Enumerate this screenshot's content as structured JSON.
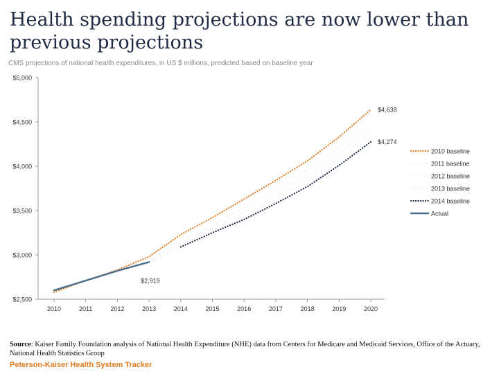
{
  "title": "Health spending projections are now lower than previous projections",
  "subtitle": "CMS projections of national health expenditures, in US $ millions, predicted based on baseline year",
  "source_label": "Source",
  "source_text": ": Kaiser Family Foundation analysis of National Health Expenditure (NHE) data from Centers for Medicare and Medicaid Services, Office of the Actuary, National Health Statistics Group",
  "brand": "Peterson-Kaiser Health System Tracker",
  "chart_data": {
    "type": "line",
    "title": "Health spending projections are now lower than previous projections",
    "subtitle": "CMS projections of national health expenditures, in US $ millions, predicted based on baseline year",
    "xlabel": "",
    "ylabel": "",
    "categories": [
      "2010",
      "2011",
      "2012",
      "2013",
      "2014",
      "2015",
      "2016",
      "2017",
      "2018",
      "2019",
      "2020"
    ],
    "ylim": [
      2500,
      5000
    ],
    "yticks": [
      2500,
      3000,
      3500,
      4000,
      4500,
      5000
    ],
    "ytick_labels": [
      "$2,500",
      "$3,000",
      "$3,500",
      "$4,000",
      "$4,500",
      "$5,000"
    ],
    "grid": false,
    "legend_position": "right",
    "series": [
      {
        "name": "2010 baseline",
        "color": "#e07b1f",
        "style": "dotted",
        "x": [
          2010,
          2011,
          2012,
          2013,
          2014,
          2015,
          2016,
          2017,
          2018,
          2019,
          2020
        ],
        "values": [
          2580,
          2710,
          2830,
          2980,
          3230,
          3420,
          3630,
          3840,
          4060,
          4330,
          4638
        ]
      },
      {
        "name": "2011 baseline",
        "color": "#dcdcdc",
        "style": "dotted",
        "x": [
          2011,
          2012,
          2013,
          2014,
          2015,
          2016,
          2017,
          2018,
          2019,
          2020
        ],
        "values": [
          2700,
          2810,
          2950,
          3140,
          3330,
          3530,
          3740,
          3960,
          4210,
          4490
        ]
      },
      {
        "name": "2012 baseline",
        "color": "#dcdcdc",
        "style": "dotted",
        "x": [
          2012,
          2013,
          2014,
          2015,
          2016,
          2017,
          2018,
          2019,
          2020
        ],
        "values": [
          2800,
          2920,
          3110,
          3290,
          3480,
          3690,
          3900,
          4150,
          4430
        ]
      },
      {
        "name": "2013 baseline",
        "color": "#dcdcdc",
        "style": "dotted",
        "x": [
          2013,
          2014,
          2015,
          2016,
          2017,
          2018,
          2019,
          2020
        ],
        "values": [
          2910,
          3070,
          3240,
          3430,
          3630,
          3850,
          4100,
          4380
        ]
      },
      {
        "name": "2014 baseline",
        "color": "#1f2a44",
        "style": "dotted",
        "x": [
          2014,
          2015,
          2016,
          2017,
          2018,
          2019,
          2020
        ],
        "values": [
          3090,
          3250,
          3400,
          3580,
          3770,
          4010,
          4274
        ]
      },
      {
        "name": "Actual",
        "color": "#4a6b8a",
        "style": "solid",
        "x": [
          2010,
          2011,
          2012,
          2013
        ],
        "values": [
          2600,
          2710,
          2820,
          2919
        ]
      }
    ],
    "annotations": [
      {
        "text": "$4,638",
        "x": 2020,
        "y": 4638
      },
      {
        "text": "$4,274",
        "x": 2020,
        "y": 4274
      },
      {
        "text": "$2,919",
        "x": 2013,
        "y": 2919
      }
    ]
  }
}
